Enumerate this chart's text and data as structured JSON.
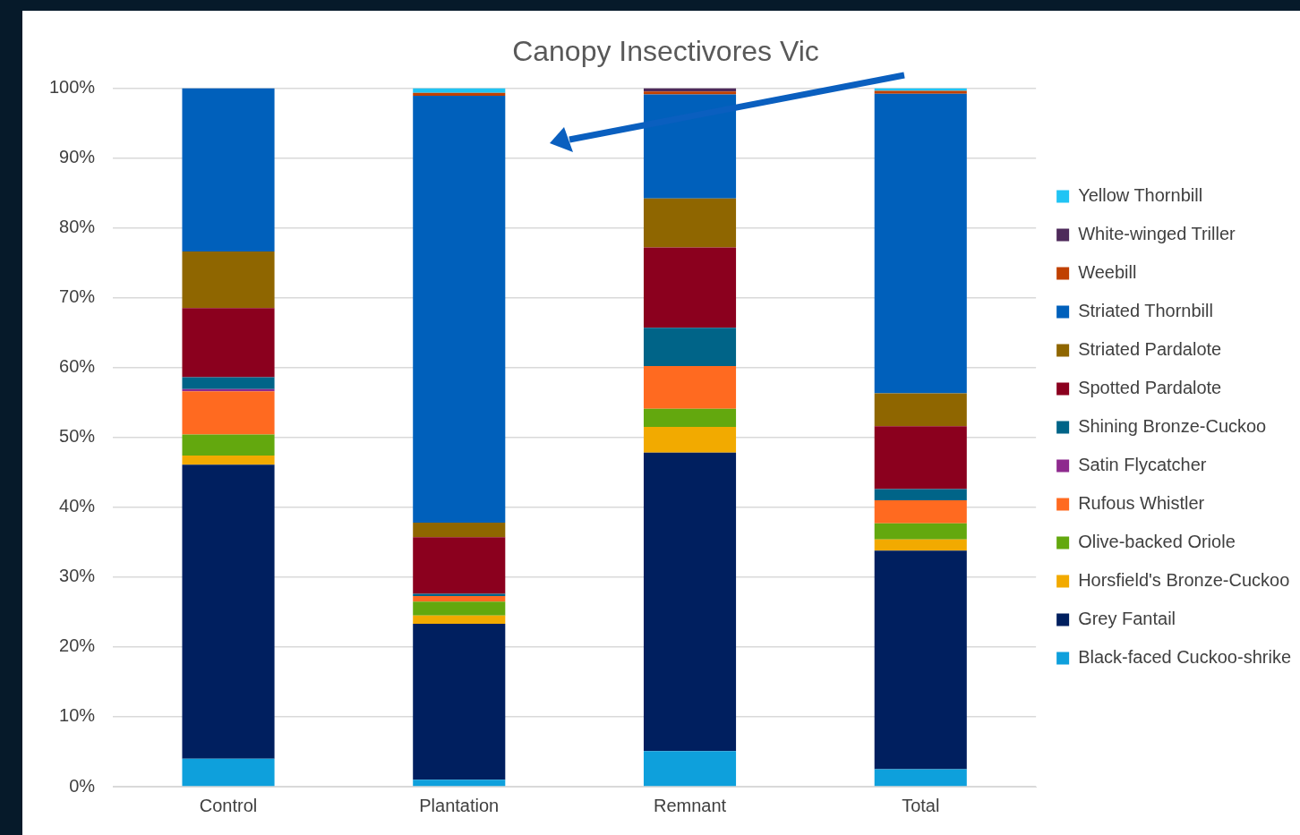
{
  "chart_data": {
    "type": "bar",
    "stacked": true,
    "title": "Canopy Insectivores Vic",
    "categories": [
      "Control",
      "Plantation",
      "Remnant",
      "Total"
    ],
    "ylim": [
      0,
      100
    ],
    "yticks": [
      {
        "value": 0,
        "label": "0%"
      },
      {
        "value": 10,
        "label": "10%"
      },
      {
        "value": 20,
        "label": "20%"
      },
      {
        "value": 30,
        "label": "30%"
      },
      {
        "value": 40,
        "label": "40%"
      },
      {
        "value": 50,
        "label": "50%"
      },
      {
        "value": 60,
        "label": "60%"
      },
      {
        "value": 70,
        "label": "70%"
      },
      {
        "value": 80,
        "label": "80%"
      },
      {
        "value": 90,
        "label": "90%"
      },
      {
        "value": 100,
        "label": "100%"
      }
    ],
    "grid": "y",
    "legend": "right",
    "series": [
      {
        "name": "Black-faced Cuckoo-shrike",
        "color": "#0ea0dc",
        "values": [
          4.0,
          1.0,
          5.1,
          2.5
        ]
      },
      {
        "name": "Grey Fantail",
        "color": "#001f5f",
        "values": [
          42.1,
          22.3,
          42.7,
          31.3
        ]
      },
      {
        "name": "Horsfield's Bronze-Cuckoo",
        "color": "#f2aa00",
        "values": [
          1.3,
          1.2,
          3.7,
          1.6
        ]
      },
      {
        "name": "Olive-backed Oriole",
        "color": "#63a80e",
        "values": [
          3.0,
          2.0,
          2.6,
          2.3
        ]
      },
      {
        "name": "Rufous Whistler",
        "color": "#ff6a20",
        "values": [
          6.2,
          0.8,
          6.1,
          3.3
        ]
      },
      {
        "name": "Satin Flycatcher",
        "color": "#8e2a8e",
        "values": [
          0.3,
          0,
          0,
          0
        ]
      },
      {
        "name": "Shining Bronze-Cuckoo",
        "color": "#006488",
        "values": [
          1.7,
          0.3,
          5.5,
          1.6
        ]
      },
      {
        "name": "Spotted Pardalote",
        "color": "#8b001e",
        "values": [
          9.9,
          8.1,
          11.5,
          9.0
        ]
      },
      {
        "name": "Striated Pardalote",
        "color": "#8f6600",
        "values": [
          8.1,
          2.1,
          7.0,
          4.7
        ]
      },
      {
        "name": "Striated Thornbill",
        "color": "#0060bb",
        "values": [
          23.4,
          61.1,
          14.9,
          42.9
        ]
      },
      {
        "name": "Weebill",
        "color": "#c04000",
        "values": [
          0,
          0.4,
          0.4,
          0.4
        ]
      },
      {
        "name": "White-winged Triller",
        "color": "#4e2a5a",
        "values": [
          0,
          0,
          0.5,
          0
        ]
      },
      {
        "name": "Yellow Thornbill",
        "color": "#20c4f4",
        "values": [
          0,
          0.7,
          0,
          0.4
        ]
      }
    ]
  }
}
